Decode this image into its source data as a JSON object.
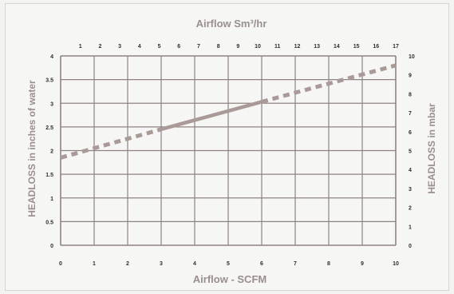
{
  "chart_data": {
    "type": "line",
    "title_top": "Airflow Sm³/hr",
    "xlabel": "Airflow - SCFM",
    "ylabel_left": "HEADLOSS in inches of water",
    "ylabel_right": "HEADLOSS in mbar",
    "x_bottom_ticks": [
      "0",
      "1",
      "2",
      "3",
      "4",
      "5",
      "6",
      "7",
      "8",
      "9",
      "10"
    ],
    "x_top_ticks": [
      "1",
      "2",
      "3",
      "4",
      "5",
      "6",
      "7",
      "8",
      "9",
      "10",
      "11",
      "12",
      "13",
      "14",
      "15",
      "16",
      "17"
    ],
    "y_left_ticks": [
      "0",
      "0.5",
      "1",
      "1.5",
      "2",
      "2.5",
      "3",
      "3.5",
      "4"
    ],
    "y_right_ticks": [
      "0",
      "1",
      "2",
      "3",
      "4",
      "5",
      "6",
      "7",
      "8",
      "9",
      "10"
    ],
    "xlim": [
      0,
      10
    ],
    "ylim": [
      0,
      4
    ],
    "grid": true,
    "series": [
      {
        "style": "dashed",
        "x": [
          0,
          3
        ],
        "y": [
          1.85,
          2.45
        ]
      },
      {
        "style": "solid",
        "x": [
          3,
          6
        ],
        "y": [
          2.45,
          3.03
        ]
      },
      {
        "style": "dashed",
        "x": [
          6,
          10
        ],
        "y": [
          3.03,
          3.8
        ]
      }
    ],
    "colors": {
      "line": "#a99a98",
      "grid": "#8f8382",
      "text": "#9a8f8d"
    }
  }
}
